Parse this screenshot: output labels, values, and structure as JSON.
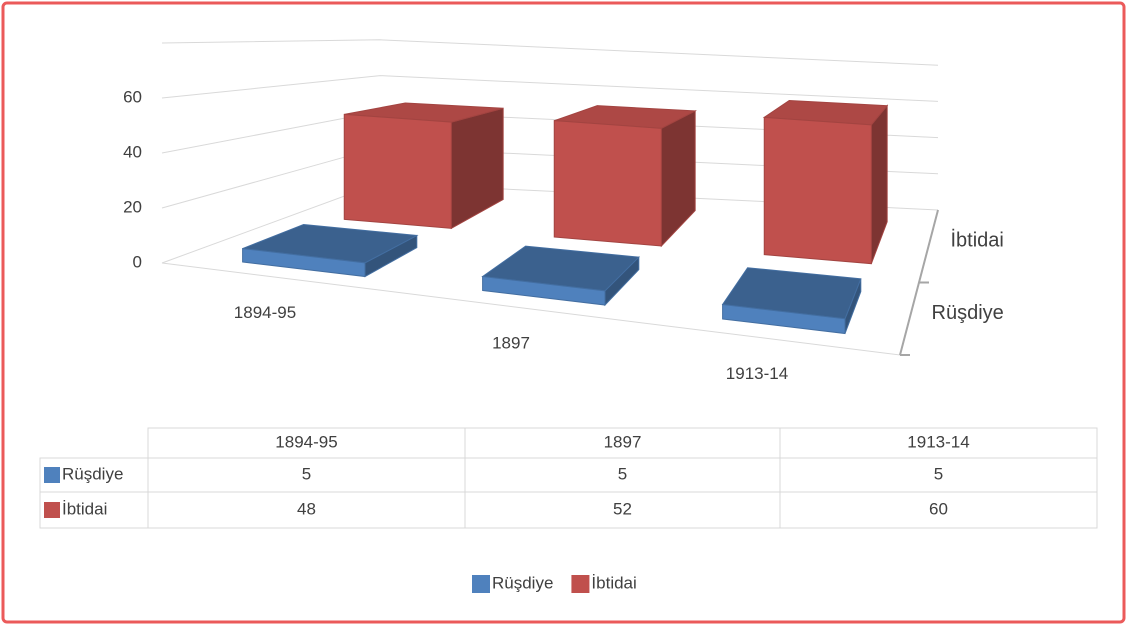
{
  "chart_data": {
    "type": "bar3d",
    "categories": [
      "1894-95",
      "1897",
      "1913-14"
    ],
    "series": [
      {
        "name": "Rüşdiye",
        "color": "#4f81bd",
        "values": [
          5,
          5,
          5
        ]
      },
      {
        "name": "İbtidai",
        "color": "#c0504d",
        "values": [
          48,
          52,
          60
        ]
      }
    ],
    "ylim": [
      0,
      80
    ],
    "yticks": [
      0,
      20,
      40,
      60
    ],
    "grid": true,
    "legend": "bottom",
    "data_table": true
  }
}
